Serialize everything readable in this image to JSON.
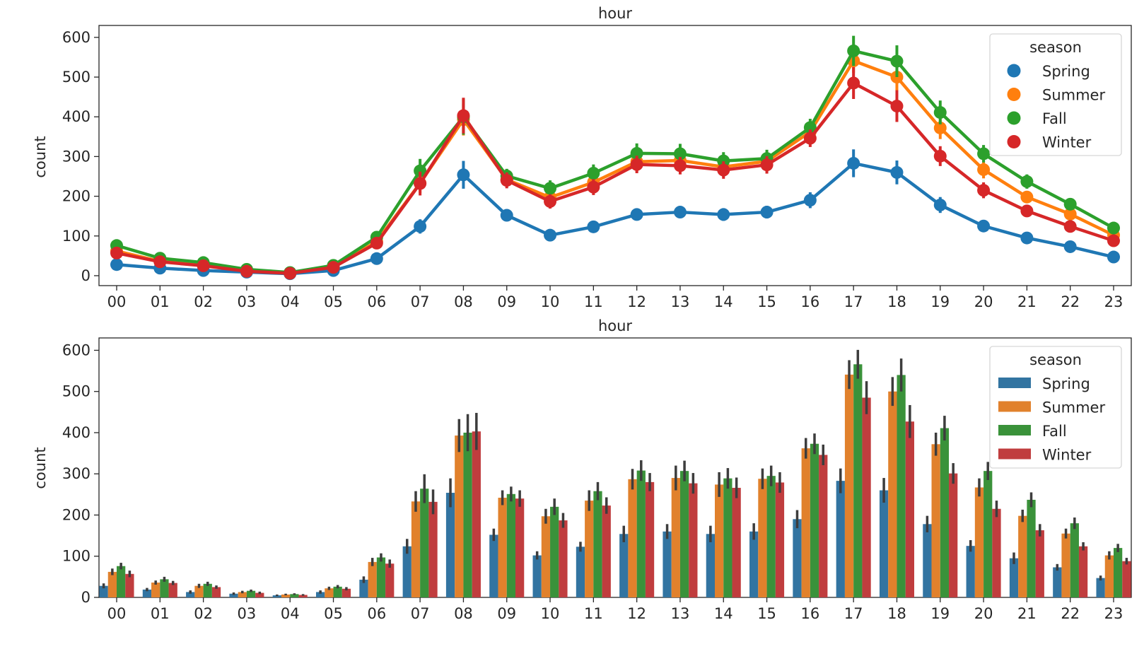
{
  "chart_data": [
    {
      "type": "line",
      "title": "hour",
      "xlabel": "",
      "ylabel": "count",
      "ylim": [
        -25,
        630
      ],
      "yticks": [
        0,
        100,
        200,
        300,
        400,
        500,
        600
      ],
      "categories": [
        "00",
        "01",
        "02",
        "03",
        "04",
        "05",
        "06",
        "07",
        "08",
        "09",
        "10",
        "11",
        "12",
        "13",
        "14",
        "15",
        "16",
        "17",
        "18",
        "19",
        "20",
        "21",
        "22",
        "23"
      ],
      "legend": {
        "title": "season",
        "placement": "top-right"
      },
      "series": [
        {
          "name": "Spring",
          "color": "#1f77b4",
          "values": [
            28,
            19,
            13,
            9,
            5,
            13,
            43,
            124,
            254,
            152,
            102,
            123,
            154,
            160,
            154,
            160,
            190,
            283,
            260,
            178,
            125,
            95,
            73,
            47
          ],
          "err": [
            6,
            4,
            4,
            3,
            2,
            4,
            8,
            18,
            35,
            15,
            10,
            12,
            15,
            14,
            16,
            16,
            20,
            35,
            30,
            20,
            14,
            10,
            8,
            6
          ]
        },
        {
          "name": "Summer",
          "color": "#ff7f0e",
          "values": [
            62,
            36,
            28,
            13,
            7,
            22,
            86,
            233,
            393,
            242,
            197,
            235,
            287,
            290,
            274,
            288,
            362,
            541,
            500,
            372,
            267,
            198,
            155,
            102
          ],
          "err": [
            8,
            5,
            5,
            3,
            2,
            4,
            10,
            25,
            40,
            18,
            18,
            18,
            25,
            25,
            25,
            22,
            25,
            30,
            35,
            28,
            22,
            15,
            12,
            10
          ]
        },
        {
          "name": "Fall",
          "color": "#2ca02c",
          "values": [
            76,
            44,
            33,
            16,
            8,
            26,
            97,
            264,
            400,
            251,
            220,
            258,
            308,
            307,
            289,
            295,
            373,
            566,
            540,
            411,
            307,
            237,
            180,
            120
          ],
          "err": [
            8,
            6,
            5,
            3,
            2,
            4,
            10,
            30,
            45,
            18,
            20,
            22,
            25,
            25,
            22,
            22,
            22,
            38,
            40,
            30,
            22,
            18,
            14,
            10
          ]
        },
        {
          "name": "Winter",
          "color": "#d62728",
          "values": [
            57,
            35,
            25,
            11,
            6,
            21,
            82,
            232,
            403,
            240,
            187,
            223,
            280,
            277,
            266,
            279,
            346,
            485,
            427,
            301,
            215,
            163,
            124,
            88
          ],
          "err": [
            8,
            5,
            4,
            3,
            2,
            4,
            10,
            30,
            45,
            20,
            18,
            20,
            22,
            22,
            22,
            22,
            22,
            40,
            40,
            25,
            20,
            15,
            10,
            8
          ]
        }
      ]
    },
    {
      "type": "bar",
      "title": "hour",
      "xlabel": "",
      "ylabel": "count",
      "ylim": [
        0,
        630
      ],
      "yticks": [
        0,
        100,
        200,
        300,
        400,
        500,
        600
      ],
      "categories": [
        "00",
        "01",
        "02",
        "03",
        "04",
        "05",
        "06",
        "07",
        "08",
        "09",
        "10",
        "11",
        "12",
        "13",
        "14",
        "15",
        "16",
        "17",
        "18",
        "19",
        "20",
        "21",
        "22",
        "23"
      ],
      "legend": {
        "title": "season",
        "placement": "top-right"
      },
      "series": [
        {
          "name": "Spring",
          "color": "#3274a1",
          "values": [
            28,
            19,
            13,
            9,
            5,
            13,
            43,
            124,
            254,
            152,
            102,
            123,
            154,
            160,
            154,
            160,
            190,
            283,
            260,
            178,
            125,
            95,
            73,
            47
          ],
          "err": [
            6,
            4,
            4,
            3,
            2,
            4,
            8,
            18,
            35,
            15,
            10,
            12,
            20,
            18,
            20,
            20,
            22,
            30,
            30,
            20,
            14,
            14,
            8,
            6
          ]
        },
        {
          "name": "Summer",
          "color": "#e1812c",
          "values": [
            62,
            36,
            28,
            13,
            7,
            22,
            86,
            233,
            393,
            242,
            197,
            235,
            287,
            290,
            274,
            288,
            362,
            541,
            500,
            372,
            267,
            198,
            155,
            102
          ],
          "err": [
            8,
            5,
            5,
            3,
            2,
            4,
            10,
            25,
            40,
            18,
            18,
            25,
            25,
            30,
            30,
            25,
            25,
            35,
            35,
            28,
            22,
            15,
            12,
            10
          ]
        },
        {
          "name": "Fall",
          "color": "#3a923a",
          "values": [
            76,
            44,
            33,
            16,
            8,
            26,
            97,
            264,
            400,
            251,
            220,
            258,
            308,
            307,
            289,
            295,
            373,
            566,
            540,
            411,
            307,
            237,
            180,
            120
          ],
          "err": [
            8,
            6,
            5,
            3,
            2,
            4,
            10,
            35,
            45,
            18,
            20,
            22,
            25,
            25,
            25,
            25,
            25,
            35,
            40,
            30,
            22,
            18,
            14,
            10
          ]
        },
        {
          "name": "Winter",
          "color": "#c03d3e",
          "values": [
            57,
            35,
            25,
            11,
            6,
            21,
            82,
            232,
            403,
            240,
            187,
            223,
            280,
            277,
            266,
            279,
            346,
            485,
            427,
            301,
            215,
            163,
            124,
            88
          ],
          "err": [
            8,
            5,
            4,
            3,
            2,
            4,
            10,
            30,
            45,
            20,
            18,
            20,
            22,
            25,
            25,
            25,
            25,
            40,
            40,
            25,
            20,
            15,
            10,
            8
          ]
        }
      ]
    }
  ]
}
